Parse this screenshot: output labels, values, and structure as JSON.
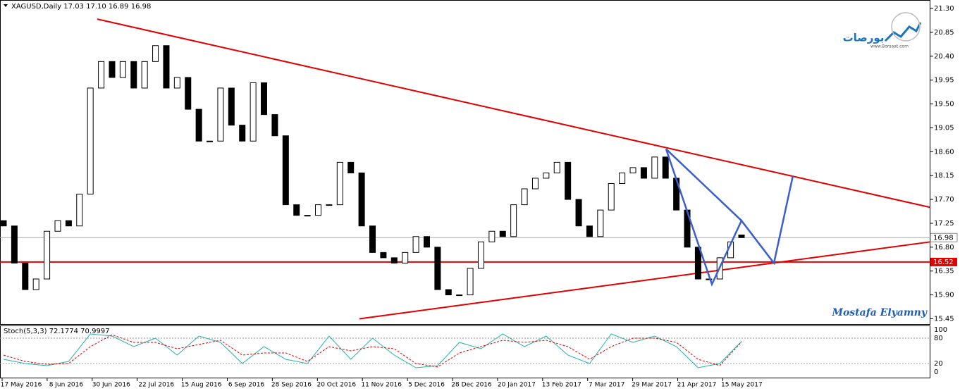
{
  "chart_data": {
    "type": "candlestick",
    "title": "XAGUSD,Daily  17.03 17.10 16.89 16.98",
    "ylim": [
      15.35,
      21.46
    ],
    "yticks": [
      {
        "value": 21.3,
        "label": "21.30"
      },
      20.85,
      {
        "value": 20.4,
        "label": "20.40"
      },
      19.95,
      {
        "value": 19.5,
        "label": "19.50"
      },
      19.05,
      {
        "value": 18.6,
        "label": "18.60"
      },
      18.15,
      {
        "value": 17.7,
        "label": "17.70"
      },
      17.25,
      {
        "value": 16.8,
        "label": "16.80"
      },
      16.35,
      {
        "value": 15.9,
        "label": "15.90"
      },
      15.45
    ],
    "x_labels": [
      "17 May 2016",
      "8 Jun 2016",
      "30 Jun 2016",
      "22 Jul 2016",
      "15 Aug 2016",
      "6 Sep 2016",
      "28 Sep 2016",
      "20 Oct 2016",
      "11 Nov 2016",
      "5 Dec 2016",
      "28 Dec 2016",
      "20 Jan 2017",
      "13 Feb 2017",
      "7 Mar 2017",
      "29 Mar 2017",
      "21 Apr 2017",
      "15 May 2017"
    ],
    "open": [
      17.3,
      17.2,
      16.5,
      16.0,
      16.2,
      17.1,
      17.3,
      17.2,
      17.8,
      19.8,
      20.3,
      20.0,
      20.3,
      19.8,
      20.3,
      20.6,
      19.8,
      20.0,
      19.4,
      18.8,
      18.8,
      19.8,
      19.1,
      18.8,
      19.9,
      19.3,
      18.9,
      17.6,
      17.4,
      17.4,
      17.6,
      17.6,
      18.4,
      18.2,
      17.2,
      16.7,
      16.6,
      16.5,
      16.7,
      17.0,
      16.8,
      16.0,
      15.9,
      15.9,
      16.4,
      16.9,
      17.1,
      17.0,
      17.6,
      17.9,
      18.1,
      18.2,
      18.4,
      17.7,
      17.2,
      17.0,
      17.5,
      18.0,
      18.2,
      18.3,
      18.1,
      18.5,
      18.1,
      17.5,
      16.8,
      16.2,
      16.2,
      16.6,
      17.03
    ],
    "close": [
      17.2,
      16.5,
      16.0,
      16.2,
      17.1,
      17.3,
      17.2,
      17.8,
      19.8,
      20.3,
      20.0,
      20.3,
      19.8,
      20.3,
      20.6,
      19.8,
      20.0,
      19.4,
      18.8,
      18.8,
      19.8,
      19.1,
      18.8,
      19.9,
      19.3,
      18.9,
      17.6,
      17.4,
      17.4,
      17.6,
      17.6,
      18.4,
      18.2,
      17.2,
      16.7,
      16.6,
      16.5,
      16.7,
      17.0,
      16.8,
      16.0,
      15.9,
      15.9,
      16.4,
      16.9,
      17.1,
      17.0,
      17.6,
      17.9,
      18.1,
      18.2,
      18.4,
      17.7,
      17.2,
      17.0,
      17.5,
      18.0,
      18.2,
      18.3,
      18.1,
      18.5,
      18.1,
      17.5,
      16.8,
      16.2,
      16.2,
      16.6,
      16.9,
      16.98
    ],
    "current_price": 16.98,
    "level": 16.52,
    "resistance": [
      21.1,
      17.55
    ],
    "support": [
      15.45,
      16.9
    ],
    "pattern": [
      18.65,
      16.1,
      17.3,
      16.5,
      18.15
    ],
    "signature": "Mostafa Elyamny",
    "logo": "بورصات",
    "logo_url": "www.Borsaat.com",
    "stoch": {
      "title": "Stoch(5,3,3) 72.1774 70.9997",
      "ylim": [
        0,
        100
      ],
      "yticks": [
        100,
        80,
        20,
        0
      ],
      "main": [
        30,
        20,
        15,
        25,
        90,
        85,
        60,
        80,
        40,
        85,
        70,
        20,
        60,
        30,
        20,
        85,
        30,
        80,
        40,
        10,
        15,
        70,
        55,
        90,
        60,
        85,
        40,
        20,
        90,
        70,
        85,
        60,
        10,
        20,
        72.1774
      ],
      "signal": [
        40,
        25,
        18,
        20,
        60,
        88,
        70,
        70,
        55,
        65,
        75,
        40,
        45,
        45,
        25,
        60,
        50,
        60,
        55,
        20,
        12,
        45,
        60,
        75,
        70,
        75,
        60,
        30,
        60,
        80,
        80,
        70,
        30,
        15,
        70.9997
      ]
    }
  }
}
